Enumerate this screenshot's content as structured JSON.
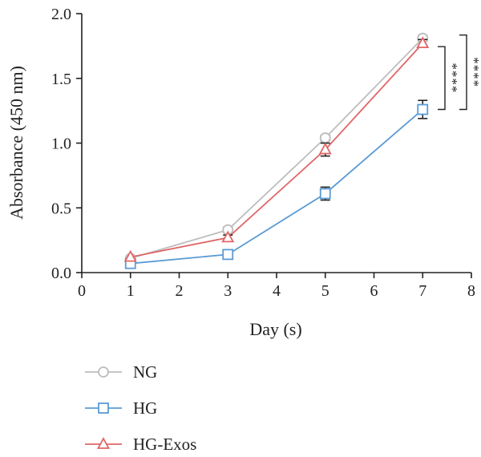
{
  "chart_data": {
    "type": "line",
    "title": "",
    "xlabel": "Day (s)",
    "ylabel": "Absorbance (450 nm)",
    "xlim": [
      0,
      8
    ],
    "ylim": [
      0,
      2.0
    ],
    "x_ticks": [
      "0",
      "1",
      "2",
      "3",
      "4",
      "5",
      "6",
      "7",
      "8"
    ],
    "y_ticks": [
      "0.0",
      "0.5",
      "1.0",
      "1.5",
      "2.0"
    ],
    "grid": false,
    "legend_position": "bottom-left",
    "x": [
      1,
      3,
      5,
      7
    ],
    "series": [
      {
        "name": "NG",
        "marker": "circle",
        "color": "#bdbdbd",
        "values": [
          0.11,
          0.33,
          1.04,
          1.81
        ],
        "errors": [
          0.01,
          0.02,
          0.02,
          0.02
        ]
      },
      {
        "name": "HG",
        "marker": "square",
        "color": "#5b9bd5",
        "values": [
          0.07,
          0.14,
          0.61,
          1.26
        ],
        "errors": [
          0.01,
          0.01,
          0.05,
          0.07
        ]
      },
      {
        "name": "HG-Exos",
        "marker": "triangle",
        "color": "#e06666",
        "values": [
          0.12,
          0.27,
          0.95,
          1.77
        ],
        "errors": [
          0.01,
          0.02,
          0.05,
          0.03
        ]
      }
    ],
    "annotations": [
      {
        "text": "****",
        "between": [
          "HG",
          "HG-Exos"
        ],
        "at_x": 7
      },
      {
        "text": "****",
        "between": [
          "HG",
          "NG"
        ],
        "at_x": 7
      }
    ]
  }
}
